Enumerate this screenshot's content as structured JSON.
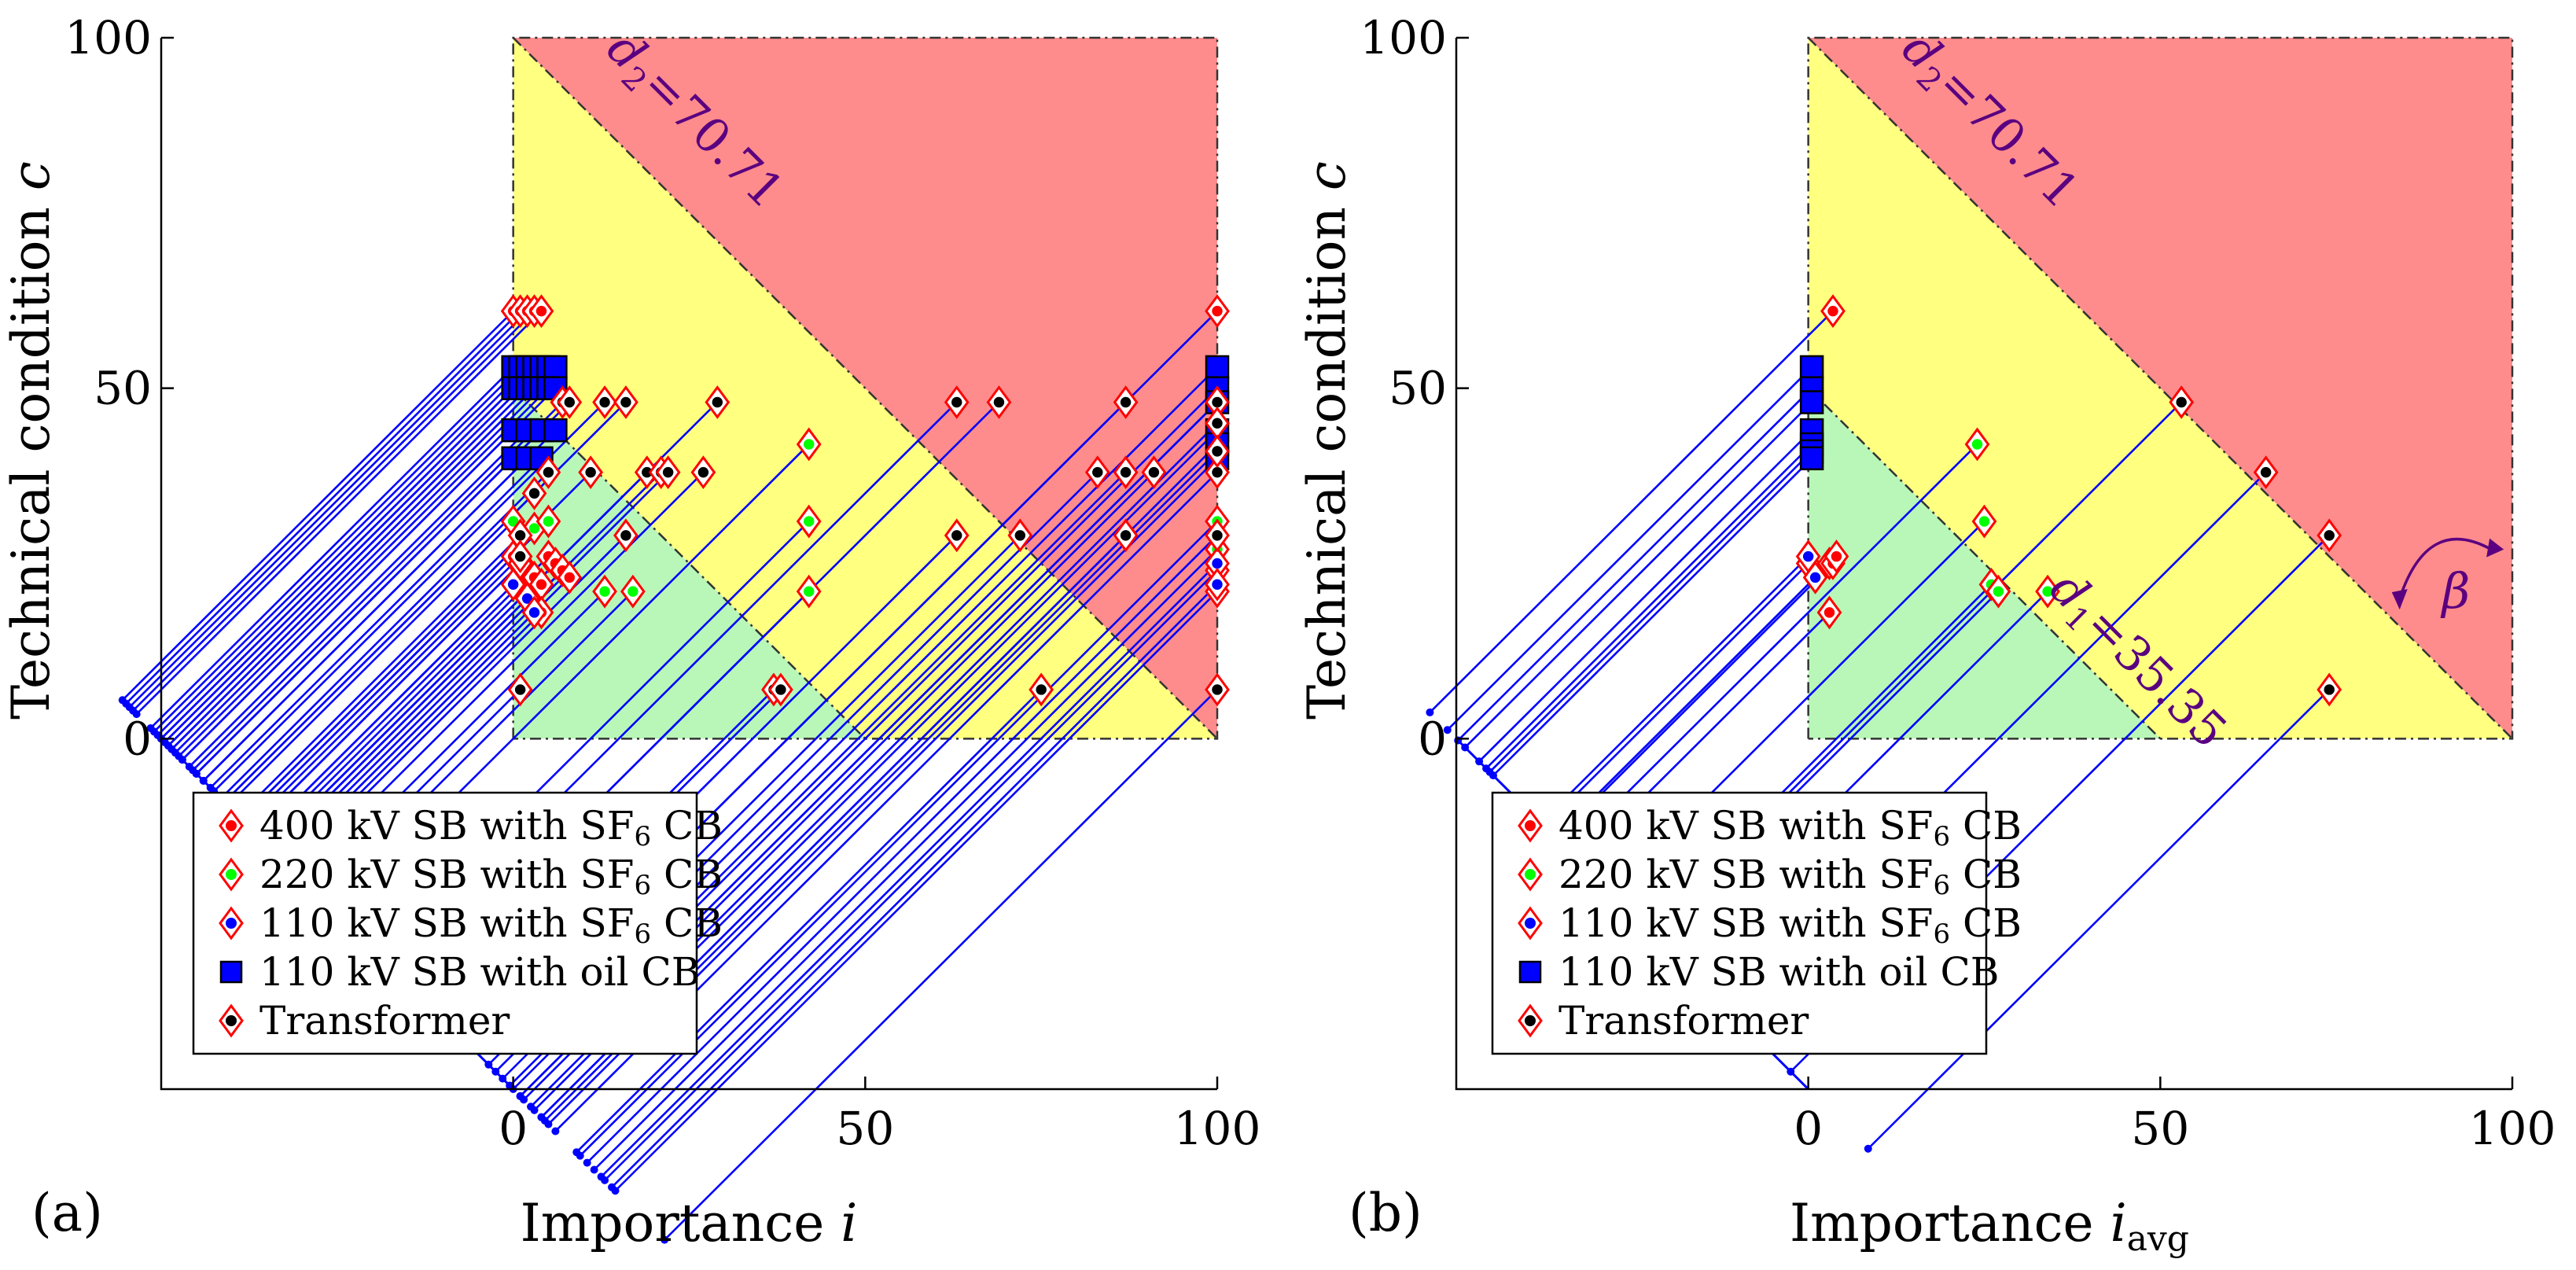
{
  "chart_data": [
    {
      "type": "scatter",
      "panel_label": "(a)",
      "xlabel": "Importance",
      "xlabel_var": "i",
      "xlabel_sub": "",
      "ylabel": "Technical condition",
      "ylabel_var": "c",
      "xlim": [
        -50,
        100
      ],
      "ylim": [
        -50,
        100
      ],
      "xticks": [
        "0",
        "50",
        "100"
      ],
      "yticks": [
        "0",
        "50",
        "100"
      ],
      "xtick_values": [
        0,
        50,
        100
      ],
      "ytick_values": [
        0,
        50,
        100
      ],
      "annotations": [
        {
          "label": "d",
          "sub": "2",
          "value": "=70.71"
        }
      ],
      "arrow_label": "",
      "legend": [
        {
          "prefix": "400 kV SB with SF",
          "sub": "6",
          "suffix": " CB",
          "marker": "diamond",
          "fill": "#ff0000"
        },
        {
          "prefix": "220 kV SB with SF",
          "sub": "6",
          "suffix": " CB",
          "marker": "diamond",
          "fill": "#00ff00"
        },
        {
          "prefix": "110 kV SB with SF",
          "sub": "6",
          "suffix": " CB",
          "marker": "diamond",
          "fill": "#0000ff"
        },
        {
          "prefix": "110 kV SB with oil CB",
          "sub": "",
          "suffix": "",
          "marker": "square",
          "fill": "#0000ff"
        },
        {
          "prefix": "Transformer",
          "sub": "",
          "suffix": "",
          "marker": "diamond",
          "fill": "#000000"
        }
      ],
      "series": [
        {
          "name": "400 kV SB with SF6 CB",
          "x": [
            0,
            1,
            2,
            3,
            4,
            0,
            1,
            2,
            3,
            4,
            5,
            6,
            7,
            8,
            2,
            4,
            100
          ],
          "y": [
            61,
            61,
            61,
            61,
            61,
            26,
            25,
            24,
            23,
            22,
            26,
            25,
            24,
            23,
            20,
            18,
            61
          ]
        },
        {
          "name": "220 kV SB with SF6 CB",
          "x": [
            3,
            5,
            13,
            17,
            42,
            42,
            42,
            100,
            100,
            100,
            100,
            0
          ],
          "y": [
            30,
            31,
            21,
            21,
            42,
            31,
            21,
            31,
            27,
            21,
            24,
            31
          ]
        },
        {
          "name": "110 kV SB with SF6 CB",
          "x": [
            0,
            1,
            2,
            3,
            100,
            100
          ],
          "y": [
            22,
            25,
            20,
            18,
            25,
            22
          ]
        },
        {
          "name": "110 kV SB with oil CB",
          "x": [
            0,
            1,
            2,
            3,
            4,
            5,
            6,
            0,
            1,
            2,
            3,
            4,
            5,
            6,
            0,
            2,
            4,
            6,
            0,
            2,
            4,
            100,
            100,
            100,
            100,
            100,
            100
          ],
          "y": [
            53,
            53,
            53,
            53,
            53,
            53,
            53,
            50,
            50,
            50,
            50,
            50,
            50,
            50,
            44,
            44,
            44,
            44,
            40,
            40,
            40,
            53,
            50,
            48,
            44,
            42,
            40
          ]
        },
        {
          "name": "Transformer",
          "x": [
            1,
            1,
            1,
            3,
            5,
            7,
            8,
            11,
            13,
            16,
            16,
            19,
            21,
            22,
            27,
            29,
            37,
            38,
            63,
            63,
            69,
            72,
            75,
            83,
            87,
            87,
            87,
            91,
            100,
            100,
            100,
            100,
            100,
            100
          ],
          "y": [
            29,
            26,
            7,
            35,
            38,
            48,
            48,
            38,
            48,
            29,
            48,
            38,
            38,
            38,
            38,
            48,
            7,
            7,
            48,
            29,
            48,
            29,
            7,
            38,
            38,
            48,
            29,
            38,
            48,
            38,
            29,
            7,
            45,
            41
          ]
        }
      ]
    },
    {
      "type": "scatter",
      "panel_label": "(b)",
      "xlabel": "Importance",
      "xlabel_var": "i",
      "xlabel_sub": "avg",
      "ylabel": "Technical condition",
      "ylabel_var": "c",
      "xlim": [
        -50,
        100
      ],
      "ylim": [
        -50,
        100
      ],
      "xticks": [
        "0",
        "50",
        "100"
      ],
      "yticks": [
        "0",
        "50",
        "100"
      ],
      "xtick_values": [
        0,
        50,
        100
      ],
      "ytick_values": [
        0,
        50,
        100
      ],
      "annotations": [
        {
          "label": "d",
          "sub": "2",
          "value": "=70.71"
        },
        {
          "label": "d",
          "sub": "1",
          "value": "=35.35"
        }
      ],
      "arrow_label": "β",
      "legend": [
        {
          "prefix": "400 kV SB with SF",
          "sub": "6",
          "suffix": " CB",
          "marker": "diamond",
          "fill": "#ff0000"
        },
        {
          "prefix": "220 kV SB with SF",
          "sub": "6",
          "suffix": " CB",
          "marker": "diamond",
          "fill": "#00ff00"
        },
        {
          "prefix": "110 kV SB with SF",
          "sub": "6",
          "suffix": " CB",
          "marker": "diamond",
          "fill": "#0000ff"
        },
        {
          "prefix": "110 kV SB with oil CB",
          "sub": "",
          "suffix": "",
          "marker": "square",
          "fill": "#0000ff"
        },
        {
          "prefix": "Transformer",
          "sub": "",
          "suffix": "",
          "marker": "diamond",
          "fill": "#000000"
        }
      ],
      "series": [
        {
          "name": "400 kV SB with SF6 CB",
          "x": [
            3.5,
            0,
            3,
            3.5,
            4,
            3
          ],
          "y": [
            61,
            25,
            25,
            25,
            26,
            18
          ]
        },
        {
          "name": "220 kV SB with SF6 CB",
          "x": [
            24,
            25,
            26,
            27,
            34
          ],
          "y": [
            42,
            31,
            22,
            21,
            21
          ]
        },
        {
          "name": "110 kV SB with SF6 CB",
          "x": [
            0,
            1
          ],
          "y": [
            26,
            23
          ]
        },
        {
          "name": "110 kV SB with oil CB",
          "x": [
            0.5,
            0.5,
            0.5,
            0.5,
            0.5,
            0.5,
            0.5
          ],
          "y": [
            53,
            50,
            48,
            44,
            42,
            41,
            40
          ]
        },
        {
          "name": "Transformer",
          "x": [
            53,
            65,
            74,
            74
          ],
          "y": [
            48,
            38,
            29,
            7
          ]
        }
      ]
    }
  ],
  "colors": {
    "red_region": "#ff8c8c",
    "yellow_region": "#ffff80",
    "green_region": "#b8f7b8",
    "projection_line": "#0000ff",
    "annotation": "#5a0080",
    "marker_edge": "#ff0000"
  }
}
